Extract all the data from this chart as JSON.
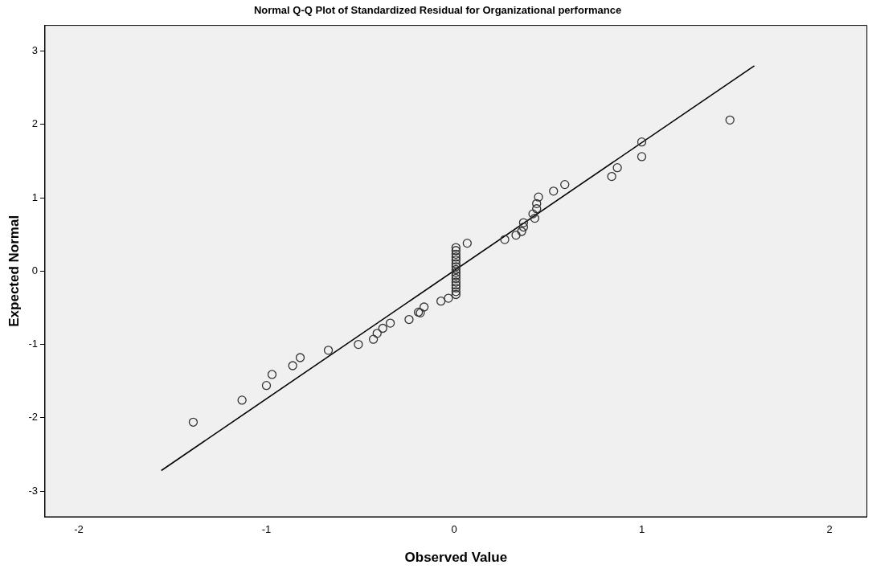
{
  "chart_data": {
    "type": "scatter",
    "title": "Normal Q-Q Plot of Standardized Residual for Organizational performance",
    "xlabel": "Observed Value",
    "ylabel": "Expected Normal",
    "xlim": [
      -2.18,
      2.2
    ],
    "ylim": [
      -3.35,
      3.35
    ],
    "xticks": [
      -2,
      -1,
      0,
      1,
      2
    ],
    "yticks": [
      -3,
      -2,
      -1,
      0,
      1,
      2,
      3
    ],
    "grid": false,
    "legend": false,
    "marker": "circle",
    "series": [
      {
        "color": "#333333",
        "x": [
          -1.39,
          -1.13,
          -1.0,
          -0.97,
          -0.86,
          -0.82,
          -0.67,
          -0.51,
          -0.43,
          -0.41,
          -0.38,
          -0.34,
          -0.24,
          -0.19,
          -0.18,
          -0.16,
          -0.07,
          -0.03,
          0.01,
          0.01,
          0.01,
          0.01,
          0.01,
          0.01,
          0.01,
          0.01,
          0.01,
          0.01,
          0.01,
          0.01,
          0.01,
          0.01,
          0.01,
          0.01,
          0.07,
          0.27,
          0.33,
          0.36,
          0.37,
          0.37,
          0.43,
          0.42,
          0.44,
          0.44,
          0.45,
          0.53,
          0.59,
          0.84,
          0.87,
          1.0,
          1.0,
          1.47
        ],
        "values": [
          -2.06,
          -1.76,
          -1.56,
          -1.41,
          -1.29,
          -1.18,
          -1.08,
          -1.0,
          -0.93,
          -0.85,
          -0.78,
          -0.71,
          -0.66,
          -0.56,
          -0.57,
          -0.49,
          -0.41,
          -0.37,
          -0.32,
          -0.28,
          -0.23,
          -0.19,
          -0.15,
          -0.1,
          -0.06,
          -0.02,
          0.02,
          0.06,
          0.1,
          0.15,
          0.19,
          0.23,
          0.28,
          0.32,
          0.38,
          0.43,
          0.49,
          0.54,
          0.6,
          0.66,
          0.72,
          0.78,
          0.85,
          0.92,
          1.01,
          1.09,
          1.18,
          1.29,
          1.41,
          1.56,
          1.76,
          2.06
        ]
      },
      {
        "type": "line",
        "color": "#000000",
        "x": [
          -1.56,
          1.6
        ],
        "values": [
          -2.72,
          2.8
        ],
        "marker": "none"
      }
    ]
  }
}
